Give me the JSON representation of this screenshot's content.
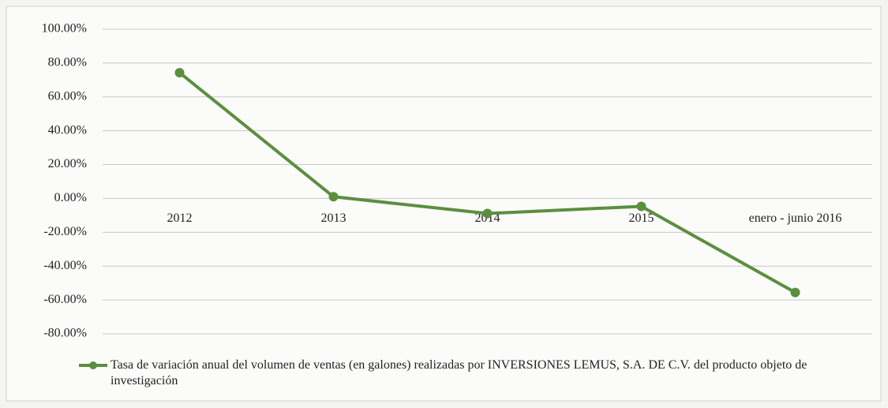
{
  "chart_data": {
    "type": "line",
    "categories": [
      "2012",
      "2013",
      "2014",
      "2015",
      "enero -  junio 2016"
    ],
    "series": [
      {
        "name": "Tasa de variación anual del volumen de ventas (en galones)  realizadas por INVERSIONES LEMUS, S.A. DE C.V. del producto objeto de investigación",
        "color": "#5b8f3e",
        "values": [
          74.3,
          1.0,
          -8.9,
          -4.7,
          -55.6
        ]
      }
    ],
    "ylim": [
      -80,
      100
    ],
    "yticks": [
      {
        "value": -80,
        "label": "-80.00%"
      },
      {
        "value": -60,
        "label": "-60.00%"
      },
      {
        "value": -40,
        "label": "-40.00%"
      },
      {
        "value": -20,
        "label": "-20.00%"
      },
      {
        "value": 0,
        "label": "0.00%"
      },
      {
        "value": 20,
        "label": "20.00%"
      },
      {
        "value": 40,
        "label": "40.00%"
      },
      {
        "value": 60,
        "label": "60.00%"
      },
      {
        "value": 80,
        "label": "80.00%"
      },
      {
        "value": 100,
        "label": "100.00%"
      }
    ],
    "grid": true
  }
}
